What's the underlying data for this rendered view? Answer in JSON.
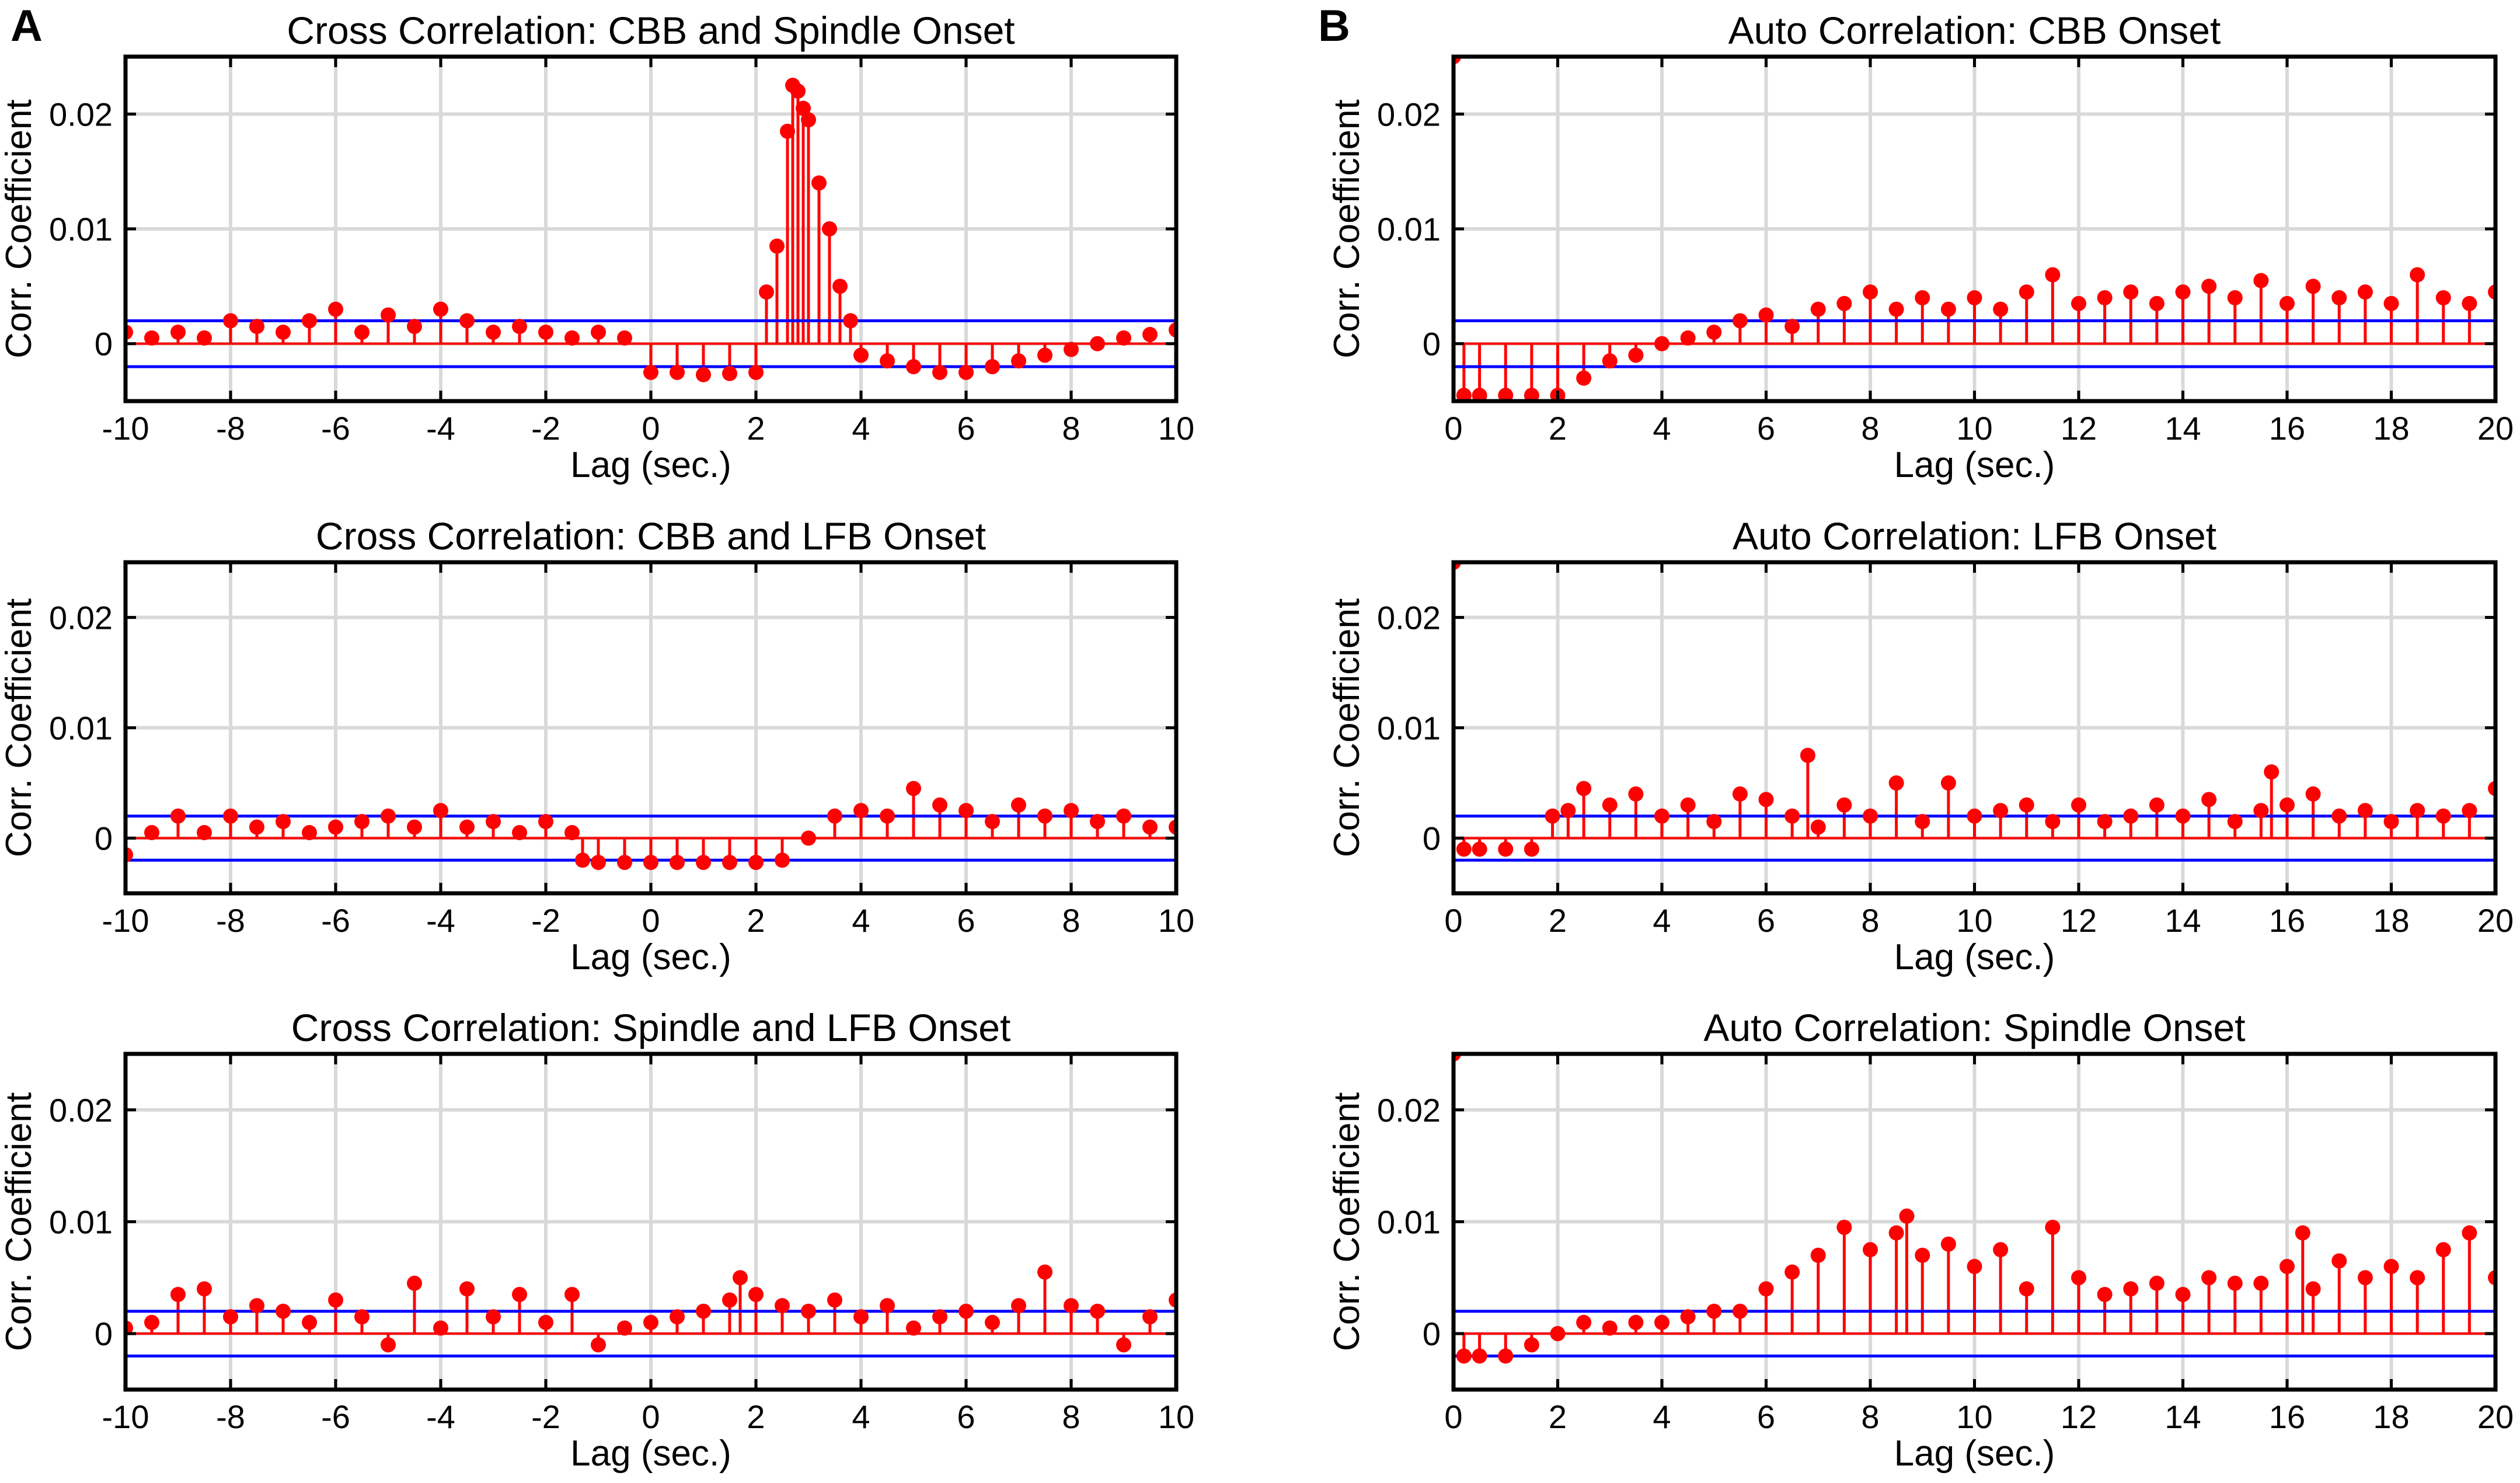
{
  "panels": {
    "A": "A",
    "B": "B"
  },
  "chart_data": [
    {
      "type": "stem",
      "title": "Cross Correlation: CBB and Spindle Onset",
      "xlabel": "Lag (sec.)",
      "ylabel": "Corr. Coefficient",
      "xlim": [
        -10,
        10
      ],
      "ylim": [
        -0.005,
        0.025
      ],
      "xticks": [
        -10,
        -8,
        -6,
        -4,
        -2,
        0,
        2,
        4,
        6,
        8,
        10
      ],
      "xtick_labels": [
        "-10",
        "-8",
        "-6",
        "-4",
        "-2",
        "0",
        "2",
        "4",
        "6",
        "8",
        "10"
      ],
      "yticks": [
        0,
        0.01,
        0.02
      ],
      "ytick_labels": [
        "0",
        "0.01",
        "0.02"
      ],
      "significance_bounds": [
        -0.002,
        0.002
      ],
      "points": [
        [
          -10,
          0.001
        ],
        [
          -9.5,
          0.0005
        ],
        [
          -9,
          0.001
        ],
        [
          -8.5,
          0.0005
        ],
        [
          -8,
          0.002
        ],
        [
          -7.5,
          0.0015
        ],
        [
          -7,
          0.001
        ],
        [
          -6.5,
          0.002
        ],
        [
          -6,
          0.003
        ],
        [
          -5.5,
          0.001
        ],
        [
          -5,
          0.0025
        ],
        [
          -4.5,
          0.0015
        ],
        [
          -4,
          0.003
        ],
        [
          -3.5,
          0.002
        ],
        [
          -3,
          0.001
        ],
        [
          -2.5,
          0.0015
        ],
        [
          -2,
          0.001
        ],
        [
          -1.5,
          0.0005
        ],
        [
          -1,
          0.001
        ],
        [
          -0.5,
          0.0005
        ],
        [
          0,
          -0.0025
        ],
        [
          0.5,
          -0.0025
        ],
        [
          1,
          -0.0027
        ],
        [
          1.5,
          -0.0026
        ],
        [
          2,
          -0.0025
        ],
        [
          2.2,
          0.0045
        ],
        [
          2.4,
          0.0085
        ],
        [
          2.6,
          0.0185
        ],
        [
          2.7,
          0.0225
        ],
        [
          2.8,
          0.022
        ],
        [
          2.9,
          0.0205
        ],
        [
          3,
          0.0195
        ],
        [
          3.2,
          0.014
        ],
        [
          3.4,
          0.01
        ],
        [
          3.6,
          0.005
        ],
        [
          3.8,
          0.002
        ],
        [
          4,
          -0.001
        ],
        [
          4.5,
          -0.0015
        ],
        [
          5,
          -0.002
        ],
        [
          5.5,
          -0.0025
        ],
        [
          6,
          -0.0025
        ],
        [
          6.5,
          -0.002
        ],
        [
          7,
          -0.0015
        ],
        [
          7.5,
          -0.001
        ],
        [
          8,
          -0.0005
        ],
        [
          8.5,
          0
        ],
        [
          9,
          0.0005
        ],
        [
          9.5,
          0.0008
        ],
        [
          10,
          0.0012
        ]
      ]
    },
    {
      "type": "stem",
      "title": "Cross Correlation: CBB and LFB Onset",
      "xlabel": "Lag (sec.)",
      "ylabel": "Corr. Coefficient",
      "xlim": [
        -10,
        10
      ],
      "ylim": [
        -0.005,
        0.025
      ],
      "xticks": [
        -10,
        -8,
        -6,
        -4,
        -2,
        0,
        2,
        4,
        6,
        8,
        10
      ],
      "xtick_labels": [
        "-10",
        "-8",
        "-6",
        "-4",
        "-2",
        "0",
        "2",
        "4",
        "6",
        "8",
        "10"
      ],
      "yticks": [
        0,
        0.01,
        0.02
      ],
      "ytick_labels": [
        "0",
        "0.01",
        "0.02"
      ],
      "significance_bounds": [
        -0.002,
        0.002
      ],
      "points": [
        [
          -10,
          -0.0015
        ],
        [
          -9.5,
          0.0005
        ],
        [
          -9,
          0.002
        ],
        [
          -8.5,
          0.0005
        ],
        [
          -8,
          0.002
        ],
        [
          -7.5,
          0.001
        ],
        [
          -7,
          0.0015
        ],
        [
          -6.5,
          0.0005
        ],
        [
          -6,
          0.001
        ],
        [
          -5.5,
          0.0015
        ],
        [
          -5,
          0.002
        ],
        [
          -4.5,
          0.001
        ],
        [
          -4,
          0.0025
        ],
        [
          -3.5,
          0.001
        ],
        [
          -3,
          0.0015
        ],
        [
          -2.5,
          0.0005
        ],
        [
          -2,
          0.0015
        ],
        [
          -1.5,
          0.0005
        ],
        [
          -1.3,
          -0.002
        ],
        [
          -1,
          -0.0022
        ],
        [
          -0.5,
          -0.0022
        ],
        [
          0,
          -0.0022
        ],
        [
          0.5,
          -0.0022
        ],
        [
          1,
          -0.0022
        ],
        [
          1.5,
          -0.0022
        ],
        [
          2,
          -0.0022
        ],
        [
          2.5,
          -0.002
        ],
        [
          3,
          0
        ],
        [
          3.5,
          0.002
        ],
        [
          4,
          0.0025
        ],
        [
          4.5,
          0.002
        ],
        [
          5,
          0.0045
        ],
        [
          5.5,
          0.003
        ],
        [
          6,
          0.0025
        ],
        [
          6.5,
          0.0015
        ],
        [
          7,
          0.003
        ],
        [
          7.5,
          0.002
        ],
        [
          8,
          0.0025
        ],
        [
          8.5,
          0.0015
        ],
        [
          9,
          0.002
        ],
        [
          9.5,
          0.001
        ],
        [
          10,
          0.001
        ]
      ]
    },
    {
      "type": "stem",
      "title": "Cross Correlation: Spindle and LFB Onset",
      "xlabel": "Lag (sec.)",
      "ylabel": "Corr. Coefficient",
      "xlim": [
        -10,
        10
      ],
      "ylim": [
        -0.005,
        0.025
      ],
      "xticks": [
        -10,
        -8,
        -6,
        -4,
        -2,
        0,
        2,
        4,
        6,
        8,
        10
      ],
      "xtick_labels": [
        "-10",
        "-8",
        "-6",
        "-4",
        "-2",
        "0",
        "2",
        "4",
        "6",
        "8",
        "10"
      ],
      "yticks": [
        0,
        0.01,
        0.02
      ],
      "ytick_labels": [
        "0",
        "0.01",
        "0.02"
      ],
      "significance_bounds": [
        -0.002,
        0.002
      ],
      "points": [
        [
          -10,
          0.0005
        ],
        [
          -9.5,
          0.001
        ],
        [
          -9,
          0.0035
        ],
        [
          -8.5,
          0.004
        ],
        [
          -8,
          0.0015
        ],
        [
          -7.5,
          0.0025
        ],
        [
          -7,
          0.002
        ],
        [
          -6.5,
          0.001
        ],
        [
          -6,
          0.003
        ],
        [
          -5.5,
          0.0015
        ],
        [
          -5,
          -0.001
        ],
        [
          -4.5,
          0.0045
        ],
        [
          -4,
          0.0005
        ],
        [
          -3.5,
          0.004
        ],
        [
          -3,
          0.0015
        ],
        [
          -2.5,
          0.0035
        ],
        [
          -2,
          0.001
        ],
        [
          -1.5,
          0.0035
        ],
        [
          -1,
          -0.001
        ],
        [
          -0.5,
          0.0005
        ],
        [
          0,
          0.001
        ],
        [
          0.5,
          0.0015
        ],
        [
          1,
          0.002
        ],
        [
          1.5,
          0.003
        ],
        [
          1.7,
          0.005
        ],
        [
          2,
          0.0035
        ],
        [
          2.5,
          0.0025
        ],
        [
          3,
          0.002
        ],
        [
          3.5,
          0.003
        ],
        [
          4,
          0.0015
        ],
        [
          4.5,
          0.0025
        ],
        [
          5,
          0.0005
        ],
        [
          5.5,
          0.0015
        ],
        [
          6,
          0.002
        ],
        [
          6.5,
          0.001
        ],
        [
          7,
          0.0025
        ],
        [
          7.5,
          0.0055
        ],
        [
          8,
          0.0025
        ],
        [
          8.5,
          0.002
        ],
        [
          9,
          -0.001
        ],
        [
          9.5,
          0.0015
        ],
        [
          10,
          0.003
        ]
      ]
    },
    {
      "type": "stem",
      "title": "Auto Correlation: CBB Onset",
      "xlabel": "Lag (sec.)",
      "ylabel": "Corr. Coefficient",
      "xlim": [
        0,
        20
      ],
      "ylim": [
        -0.005,
        0.025
      ],
      "xticks": [
        0,
        2,
        4,
        6,
        8,
        10,
        12,
        14,
        16,
        18,
        20
      ],
      "xtick_labels": [
        "0",
        "2",
        "4",
        "6",
        "8",
        "10",
        "12",
        "14",
        "16",
        "18",
        "20"
      ],
      "yticks": [
        0,
        0.01,
        0.02
      ],
      "ytick_labels": [
        "0",
        "0.01",
        "0.02"
      ],
      "significance_bounds": [
        -0.002,
        0.002
      ],
      "points": [
        [
          0,
          0.025
        ],
        [
          0.2,
          -0.0045
        ],
        [
          0.5,
          -0.0045
        ],
        [
          1,
          -0.0045
        ],
        [
          1.5,
          -0.0045
        ],
        [
          2,
          -0.0045
        ],
        [
          2.5,
          -0.003
        ],
        [
          3,
          -0.0015
        ],
        [
          3.5,
          -0.001
        ],
        [
          4,
          0
        ],
        [
          4.5,
          0.0005
        ],
        [
          5,
          0.001
        ],
        [
          5.5,
          0.002
        ],
        [
          6,
          0.0025
        ],
        [
          6.5,
          0.0015
        ],
        [
          7,
          0.003
        ],
        [
          7.5,
          0.0035
        ],
        [
          8,
          0.0045
        ],
        [
          8.5,
          0.003
        ],
        [
          9,
          0.004
        ],
        [
          9.5,
          0.003
        ],
        [
          10,
          0.004
        ],
        [
          10.5,
          0.003
        ],
        [
          11,
          0.0045
        ],
        [
          11.5,
          0.006
        ],
        [
          12,
          0.0035
        ],
        [
          12.5,
          0.004
        ],
        [
          13,
          0.0045
        ],
        [
          13.5,
          0.0035
        ],
        [
          14,
          0.0045
        ],
        [
          14.5,
          0.005
        ],
        [
          15,
          0.004
        ],
        [
          15.5,
          0.0055
        ],
        [
          16,
          0.0035
        ],
        [
          16.5,
          0.005
        ],
        [
          17,
          0.004
        ],
        [
          17.5,
          0.0045
        ],
        [
          18,
          0.0035
        ],
        [
          18.5,
          0.006
        ],
        [
          19,
          0.004
        ],
        [
          19.5,
          0.0035
        ],
        [
          20,
          0.0045
        ]
      ]
    },
    {
      "type": "stem",
      "title": "Auto Correlation: LFB Onset",
      "xlabel": "Lag (sec.)",
      "ylabel": "Corr. Coefficient",
      "xlim": [
        0,
        20
      ],
      "ylim": [
        -0.005,
        0.025
      ],
      "xticks": [
        0,
        2,
        4,
        6,
        8,
        10,
        12,
        14,
        16,
        18,
        20
      ],
      "xtick_labels": [
        "0",
        "2",
        "4",
        "6",
        "8",
        "10",
        "12",
        "14",
        "16",
        "18",
        "20"
      ],
      "yticks": [
        0,
        0.01,
        0.02
      ],
      "ytick_labels": [
        "0",
        "0.01",
        "0.02"
      ],
      "significance_bounds": [
        -0.002,
        0.002
      ],
      "points": [
        [
          0,
          0.025
        ],
        [
          0.2,
          -0.001
        ],
        [
          0.5,
          -0.001
        ],
        [
          1,
          -0.001
        ],
        [
          1.5,
          -0.001
        ],
        [
          1.9,
          0.002
        ],
        [
          2.2,
          0.0025
        ],
        [
          2.5,
          0.0045
        ],
        [
          3,
          0.003
        ],
        [
          3.5,
          0.004
        ],
        [
          4,
          0.002
        ],
        [
          4.5,
          0.003
        ],
        [
          5,
          0.0015
        ],
        [
          5.5,
          0.004
        ],
        [
          6,
          0.0035
        ],
        [
          6.5,
          0.002
        ],
        [
          6.8,
          0.0075
        ],
        [
          7,
          0.001
        ],
        [
          7.5,
          0.003
        ],
        [
          8,
          0.002
        ],
        [
          8.5,
          0.005
        ],
        [
          9,
          0.0015
        ],
        [
          9.5,
          0.005
        ],
        [
          10,
          0.002
        ],
        [
          10.5,
          0.0025
        ],
        [
          11,
          0.003
        ],
        [
          11.5,
          0.0015
        ],
        [
          12,
          0.003
        ],
        [
          12.5,
          0.0015
        ],
        [
          13,
          0.002
        ],
        [
          13.5,
          0.003
        ],
        [
          14,
          0.002
        ],
        [
          14.5,
          0.0035
        ],
        [
          15,
          0.0015
        ],
        [
          15.5,
          0.0025
        ],
        [
          15.7,
          0.006
        ],
        [
          16,
          0.003
        ],
        [
          16.5,
          0.004
        ],
        [
          17,
          0.002
        ],
        [
          17.5,
          0.0025
        ],
        [
          18,
          0.0015
        ],
        [
          18.5,
          0.0025
        ],
        [
          19,
          0.002
        ],
        [
          19.5,
          0.0025
        ],
        [
          20,
          0.0045
        ]
      ]
    },
    {
      "type": "stem",
      "title": "Auto Correlation: Spindle Onset",
      "xlabel": "Lag (sec.)",
      "ylabel": "Corr. Coefficient",
      "xlim": [
        0,
        20
      ],
      "ylim": [
        -0.005,
        0.025
      ],
      "xticks": [
        0,
        2,
        4,
        6,
        8,
        10,
        12,
        14,
        16,
        18,
        20
      ],
      "xtick_labels": [
        "0",
        "2",
        "4",
        "6",
        "8",
        "10",
        "12",
        "14",
        "16",
        "18",
        "20"
      ],
      "yticks": [
        0,
        0.01,
        0.02
      ],
      "ytick_labels": [
        "0",
        "0.01",
        "0.02"
      ],
      "significance_bounds": [
        -0.002,
        0.002
      ],
      "points": [
        [
          0,
          0.025
        ],
        [
          0.2,
          -0.002
        ],
        [
          0.5,
          -0.002
        ],
        [
          1,
          -0.002
        ],
        [
          1.5,
          -0.001
        ],
        [
          2,
          0
        ],
        [
          2.5,
          0.001
        ],
        [
          3,
          0.0005
        ],
        [
          3.5,
          0.001
        ],
        [
          4,
          0.001
        ],
        [
          4.5,
          0.0015
        ],
        [
          5,
          0.002
        ],
        [
          5.5,
          0.002
        ],
        [
          6,
          0.004
        ],
        [
          6.5,
          0.0055
        ],
        [
          7,
          0.007
        ],
        [
          7.5,
          0.0095
        ],
        [
          8,
          0.0075
        ],
        [
          8.5,
          0.009
        ],
        [
          8.7,
          0.0105
        ],
        [
          9,
          0.007
        ],
        [
          9.5,
          0.008
        ],
        [
          10,
          0.006
        ],
        [
          10.5,
          0.0075
        ],
        [
          11,
          0.004
        ],
        [
          11.5,
          0.0095
        ],
        [
          12,
          0.005
        ],
        [
          12.5,
          0.0035
        ],
        [
          13,
          0.004
        ],
        [
          13.5,
          0.0045
        ],
        [
          14,
          0.0035
        ],
        [
          14.5,
          0.005
        ],
        [
          15,
          0.0045
        ],
        [
          15.5,
          0.0045
        ],
        [
          16,
          0.006
        ],
        [
          16.3,
          0.009
        ],
        [
          16.5,
          0.004
        ],
        [
          17,
          0.0065
        ],
        [
          17.5,
          0.005
        ],
        [
          18,
          0.006
        ],
        [
          18.5,
          0.005
        ],
        [
          19,
          0.0075
        ],
        [
          19.5,
          0.009
        ],
        [
          20,
          0.005
        ]
      ]
    }
  ]
}
